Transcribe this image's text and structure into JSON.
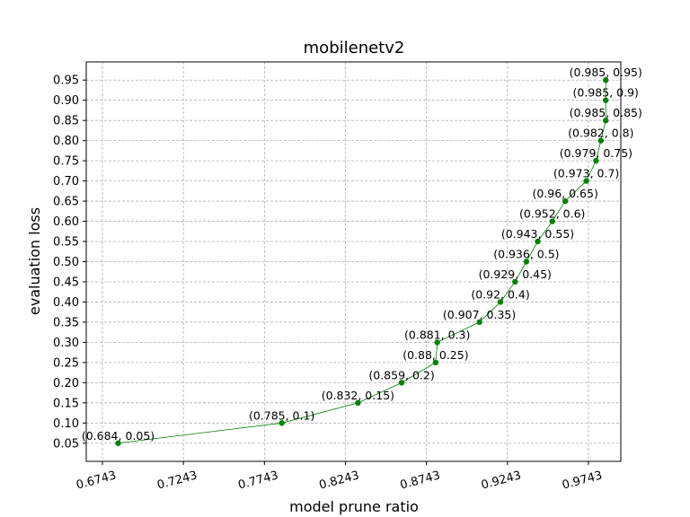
{
  "chart_data": {
    "type": "line",
    "title": "mobilenetv2",
    "xlabel": "model prune ratio",
    "ylabel": "evaluation loss",
    "xlim": [
      0.6643,
      0.9943
    ],
    "ylim": [
      0.005,
      0.995
    ],
    "xticks": [
      0.6743,
      0.7243,
      0.7743,
      0.8243,
      0.8743,
      0.9243,
      0.9743
    ],
    "xtick_labels": [
      "0.6743",
      "0.7243",
      "0.7743",
      "0.8243",
      "0.8743",
      "0.9243",
      "0.9743"
    ],
    "yticks": [
      0.05,
      0.1,
      0.15,
      0.2,
      0.25,
      0.3,
      0.35,
      0.4,
      0.45,
      0.5,
      0.55,
      0.6,
      0.65,
      0.7,
      0.75,
      0.8,
      0.85,
      0.9,
      0.95
    ],
    "ytick_labels": [
      "0.05",
      "0.10",
      "0.15",
      "0.20",
      "0.25",
      "0.30",
      "0.35",
      "0.40",
      "0.45",
      "0.50",
      "0.55",
      "0.60",
      "0.65",
      "0.70",
      "0.75",
      "0.80",
      "0.85",
      "0.90",
      "0.95"
    ],
    "grid": true,
    "color": "#008000",
    "series": [
      {
        "x": [
          0.684,
          0.785,
          0.832,
          0.859,
          0.88,
          0.881,
          0.907,
          0.92,
          0.929,
          0.936,
          0.943,
          0.952,
          0.96,
          0.973,
          0.979,
          0.982,
          0.985,
          0.985,
          0.985
        ],
        "y": [
          0.05,
          0.1,
          0.15,
          0.2,
          0.25,
          0.3,
          0.35,
          0.4,
          0.45,
          0.5,
          0.55,
          0.6,
          0.65,
          0.7,
          0.75,
          0.8,
          0.85,
          0.9,
          0.95
        ],
        "labels": [
          "(0.684, 0.05)",
          "(0.785, 0.1)",
          "(0.832, 0.15)",
          "(0.859, 0.2)",
          "(0.88, 0.25)",
          "(0.881, 0.3)",
          "(0.907, 0.35)",
          "(0.92, 0.4)",
          "(0.929, 0.45)",
          "(0.936, 0.5)",
          "(0.943, 0.55)",
          "(0.952, 0.6)",
          "(0.96, 0.65)",
          "(0.973, 0.7)",
          "(0.979, 0.75)",
          "(0.982, 0.8)",
          "(0.985, 0.85)",
          "(0.985, 0.9)",
          "(0.985, 0.95)"
        ]
      }
    ]
  }
}
